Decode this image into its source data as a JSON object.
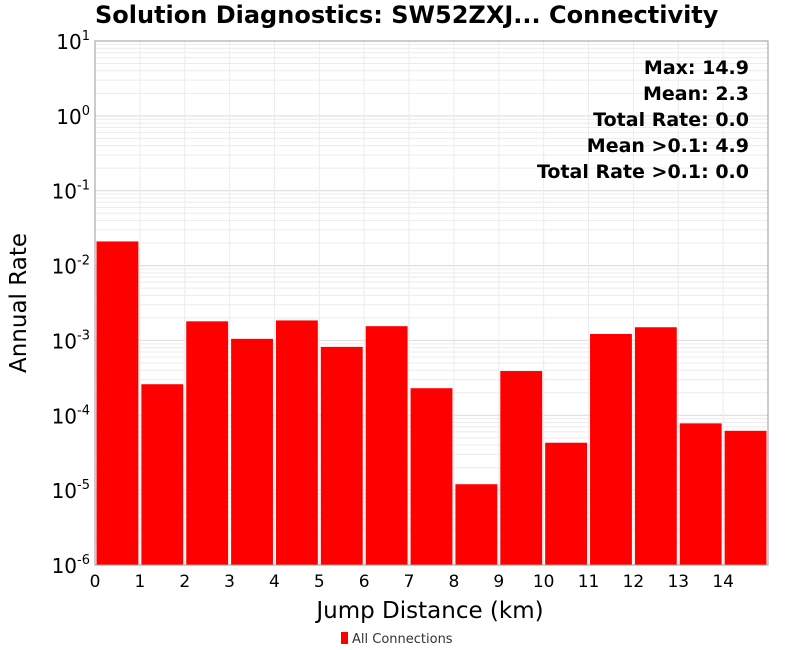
{
  "chart_data": {
    "type": "bar",
    "title": "Solution Diagnostics: SW52ZXJ... Connectivity",
    "xlabel": "Jump Distance (km)",
    "ylabel": "Annual Rate",
    "yscale": "log",
    "ylim": [
      1e-06,
      10
    ],
    "xlim": [
      0,
      15
    ],
    "x_ticks": [
      "0",
      "1",
      "2",
      "3",
      "4",
      "5",
      "6",
      "7",
      "8",
      "9",
      "10",
      "11",
      "12",
      "13",
      "14"
    ],
    "y_ticks": [
      {
        "base": "10",
        "exp": "1"
      },
      {
        "base": "10",
        "exp": "0"
      },
      {
        "base": "10",
        "exp": "-1"
      },
      {
        "base": "10",
        "exp": "-2"
      },
      {
        "base": "10",
        "exp": "-3"
      },
      {
        "base": "10",
        "exp": "-4"
      },
      {
        "base": "10",
        "exp": "-5"
      },
      {
        "base": "10",
        "exp": "-6"
      }
    ],
    "grid": true,
    "legend_position": "bottom",
    "series": [
      {
        "name": "All Connections",
        "color": "#ff0000",
        "bins": [
          {
            "x0": 0,
            "x1": 1,
            "value": 0.021
          },
          {
            "x0": 1,
            "x1": 2,
            "value": 0.00026
          },
          {
            "x0": 2,
            "x1": 3,
            "value": 0.0018
          },
          {
            "x0": 3,
            "x1": 4,
            "value": 0.00105
          },
          {
            "x0": 4,
            "x1": 5,
            "value": 0.00185
          },
          {
            "x0": 5,
            "x1": 6,
            "value": 0.00082
          },
          {
            "x0": 6,
            "x1": 7,
            "value": 0.00155
          },
          {
            "x0": 7,
            "x1": 8,
            "value": 0.00023
          },
          {
            "x0": 8,
            "x1": 9,
            "value": 1.2e-05
          },
          {
            "x0": 9,
            "x1": 10,
            "value": 0.00039
          },
          {
            "x0": 10,
            "x1": 11,
            "value": 4.3e-05
          },
          {
            "x0": 11,
            "x1": 12,
            "value": 0.00122
          },
          {
            "x0": 12,
            "x1": 13,
            "value": 0.0015
          },
          {
            "x0": 13,
            "x1": 14,
            "value": 7.8e-05
          },
          {
            "x0": 14,
            "x1": 15,
            "value": 6.2e-05
          }
        ]
      }
    ],
    "annotations": [
      "Max: 14.9",
      "Mean: 2.3",
      "Total Rate: 0.0",
      "Mean >0.1: 4.9",
      "Total Rate >0.1: 0.0"
    ]
  }
}
